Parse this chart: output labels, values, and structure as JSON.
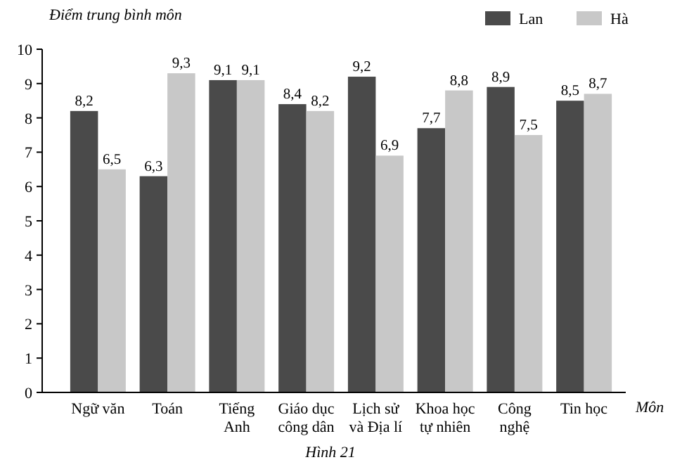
{
  "chart_data": {
    "type": "bar",
    "ylabel": "Điểm trung bình môn",
    "xlabel": "Môn",
    "annotations": [
      "Hình 21"
    ],
    "categories": [
      "Ngữ văn",
      "Toán",
      "Tiếng\nAnh",
      "Giáo dục\ncông dân",
      "Lịch sử\nvà Địa lí",
      "Khoa học\ntự nhiên",
      "Công\nnghệ",
      "Tin học"
    ],
    "series": [
      {
        "name": "Lan",
        "color": "#4a4a4a",
        "values": [
          8.2,
          6.3,
          9.1,
          8.4,
          9.2,
          7.7,
          8.9,
          8.5
        ],
        "value_labels": [
          "8,2",
          "6,3",
          "9,1",
          "8,4",
          "9,2",
          "7,7",
          "8,9",
          "8,5"
        ]
      },
      {
        "name": "Hà",
        "color": "#c8c8c8",
        "values": [
          6.5,
          9.3,
          9.1,
          8.2,
          6.9,
          8.8,
          7.5,
          8.7
        ],
        "value_labels": [
          "6,5",
          "9,3",
          "9,1",
          "8,2",
          "6,9",
          "8,8",
          "7,5",
          "8,7"
        ]
      }
    ],
    "ylim": [
      0,
      10
    ],
    "yticks": [
      0,
      1,
      2,
      3,
      4,
      5,
      6,
      7,
      8,
      9,
      10
    ],
    "legend": "top right",
    "grid": false
  }
}
